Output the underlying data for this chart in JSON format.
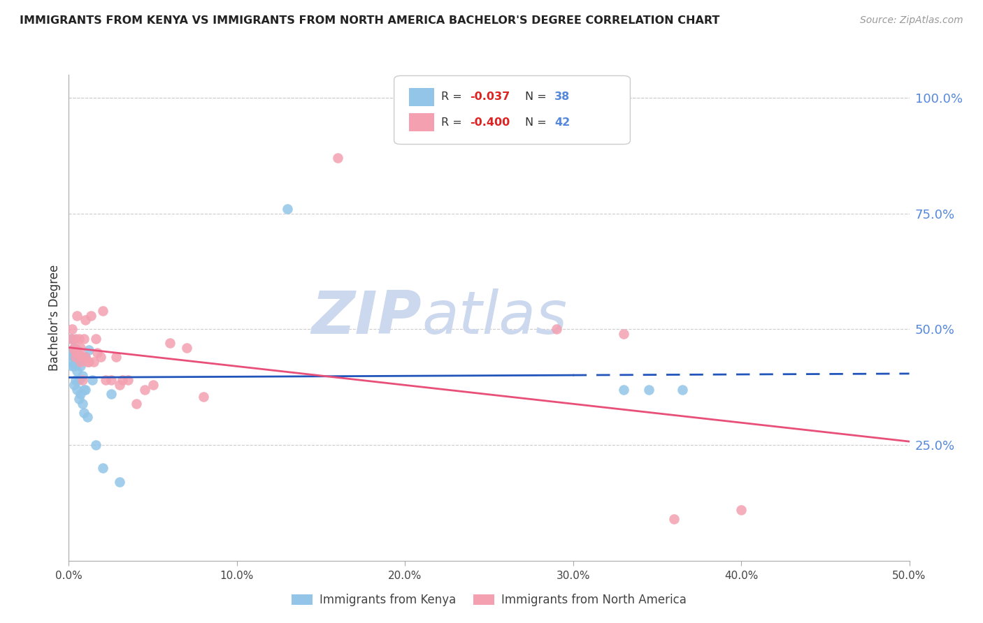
{
  "title": "IMMIGRANTS FROM KENYA VS IMMIGRANTS FROM NORTH AMERICA BACHELOR'S DEGREE CORRELATION CHART",
  "source": "Source: ZipAtlas.com",
  "ylabel": "Bachelor's Degree",
  "right_yticks": [
    "100.0%",
    "75.0%",
    "50.0%",
    "25.0%"
  ],
  "right_ytick_vals": [
    1.0,
    0.75,
    0.5,
    0.25
  ],
  "xlim": [
    0.0,
    0.5
  ],
  "ylim": [
    0.0,
    1.05
  ],
  "kenya_color": "#92c5e8",
  "northam_color": "#f4a0b0",
  "trend_blue": "#2255bb",
  "trend_pink": "#e8507a",
  "kenya_x": [
    0.001,
    0.001,
    0.002,
    0.002,
    0.002,
    0.003,
    0.003,
    0.003,
    0.003,
    0.004,
    0.004,
    0.004,
    0.005,
    0.005,
    0.005,
    0.005,
    0.006,
    0.006,
    0.006,
    0.007,
    0.007,
    0.008,
    0.008,
    0.009,
    0.009,
    0.01,
    0.01,
    0.011,
    0.012,
    0.014,
    0.016,
    0.02,
    0.025,
    0.03,
    0.33,
    0.345,
    0.365,
    0.13
  ],
  "kenya_y": [
    0.445,
    0.43,
    0.48,
    0.45,
    0.42,
    0.46,
    0.44,
    0.42,
    0.38,
    0.45,
    0.43,
    0.39,
    0.455,
    0.435,
    0.41,
    0.37,
    0.44,
    0.39,
    0.35,
    0.42,
    0.36,
    0.4,
    0.34,
    0.37,
    0.32,
    0.44,
    0.37,
    0.31,
    0.455,
    0.39,
    0.25,
    0.2,
    0.36,
    0.17,
    0.37,
    0.37,
    0.37,
    0.76
  ],
  "northam_x": [
    0.001,
    0.002,
    0.003,
    0.003,
    0.004,
    0.004,
    0.005,
    0.005,
    0.006,
    0.006,
    0.007,
    0.007,
    0.008,
    0.008,
    0.009,
    0.01,
    0.01,
    0.011,
    0.012,
    0.013,
    0.015,
    0.016,
    0.017,
    0.019,
    0.02,
    0.022,
    0.025,
    0.028,
    0.03,
    0.032,
    0.035,
    0.04,
    0.045,
    0.05,
    0.06,
    0.07,
    0.08,
    0.16,
    0.29,
    0.33,
    0.36,
    0.4
  ],
  "northam_y": [
    0.48,
    0.5,
    0.455,
    0.46,
    0.48,
    0.44,
    0.53,
    0.45,
    0.48,
    0.445,
    0.46,
    0.43,
    0.44,
    0.39,
    0.48,
    0.52,
    0.44,
    0.43,
    0.43,
    0.53,
    0.43,
    0.48,
    0.45,
    0.44,
    0.54,
    0.39,
    0.39,
    0.44,
    0.38,
    0.39,
    0.39,
    0.34,
    0.37,
    0.38,
    0.47,
    0.46,
    0.355,
    0.87,
    0.5,
    0.49,
    0.09,
    0.11
  ],
  "background_color": "#ffffff",
  "grid_color": "#cccccc",
  "watermark_zip": "ZIP",
  "watermark_atlas": "atlas",
  "watermark_color": "#ccd8ee"
}
